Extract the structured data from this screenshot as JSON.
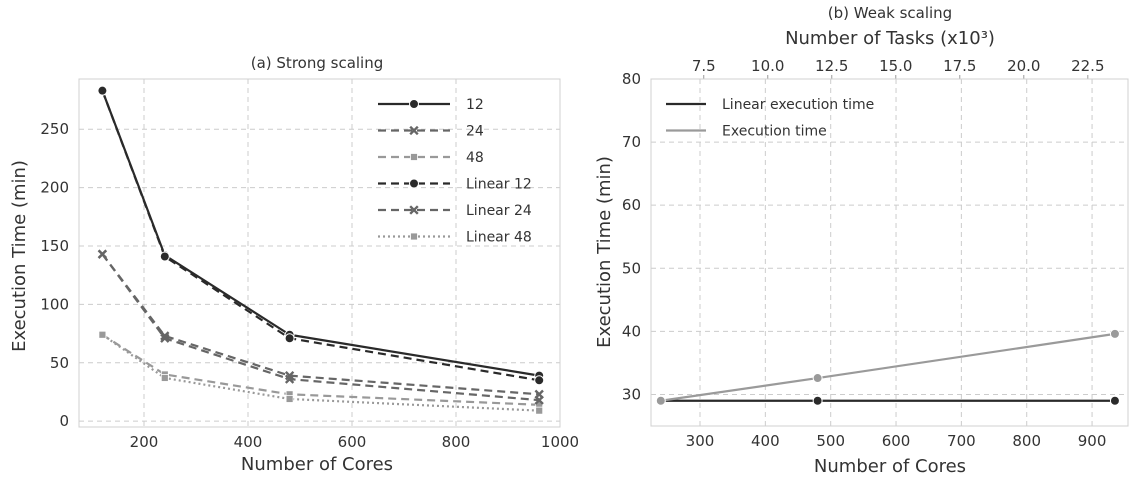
{
  "chart_data": [
    {
      "type": "line",
      "title": "(a) Strong scaling",
      "xlabel": "Number of Cores",
      "ylabel": "Execution Time (min)",
      "xlim": [
        75,
        1000
      ],
      "ylim": [
        -5,
        293
      ],
      "xticks": [
        200,
        400,
        600,
        800,
        1000
      ],
      "yticks": [
        0,
        50,
        100,
        150,
        200,
        250
      ],
      "grid": true,
      "legend_placement": "top-right",
      "series": [
        {
          "name": "12",
          "color": "#2a2a2a",
          "dash": "solid",
          "marker": "circle",
          "x": [
            120,
            240,
            480,
            960
          ],
          "y": [
            283,
            142,
            74,
            39
          ]
        },
        {
          "name": "24",
          "color": "#666666",
          "dash": "dashed",
          "marker": "x",
          "x": [
            120,
            240,
            480,
            960
          ],
          "y": [
            143,
            73,
            39,
            23
          ]
        },
        {
          "name": "48",
          "color": "#999999",
          "dash": "dashed",
          "marker": "square",
          "x": [
            120,
            240,
            480,
            960
          ],
          "y": [
            74,
            40,
            23,
            14
          ]
        },
        {
          "name": "Linear 12",
          "color": "#2a2a2a",
          "dash": "dashed",
          "marker": "circle",
          "x": [
            120,
            240,
            480,
            960
          ],
          "y": [
            283,
            141,
            71,
            35
          ]
        },
        {
          "name": "Linear 24",
          "color": "#666666",
          "dash": "dashed",
          "marker": "x",
          "x": [
            120,
            240,
            480,
            960
          ],
          "y": [
            143,
            71,
            36,
            18
          ]
        },
        {
          "name": "Linear 48",
          "color": "#999999",
          "dash": "dotted",
          "marker": "square",
          "x": [
            120,
            240,
            480,
            960
          ],
          "y": [
            74,
            37,
            19,
            9
          ]
        }
      ]
    },
    {
      "type": "line",
      "title": "(b) Weak scaling",
      "xlabel": "Number of Cores",
      "ylabel": "Execution Time (min)",
      "x2label": "Number of Tasks (x10³)",
      "xlim": [
        225,
        955
      ],
      "ylim": [
        25,
        80
      ],
      "xticks": [
        300,
        400,
        500,
        600,
        700,
        800,
        900
      ],
      "yticks": [
        30,
        40,
        50,
        60,
        70,
        80
      ],
      "x2lim": [
        5.44,
        24.07
      ],
      "x2ticks": [
        7.5,
        10.0,
        12.5,
        15.0,
        17.5,
        20.0,
        22.5
      ],
      "x2ticklabels": [
        "7.5",
        "10.0",
        "12.5",
        "15.0",
        "17.5",
        "20.0",
        "22.5"
      ],
      "grid": true,
      "legend_placement": "top-left",
      "series": [
        {
          "name": "Linear execution time",
          "color": "#2a2a2a",
          "dash": "solid",
          "marker": "circle",
          "x": [
            240,
            480,
            935
          ],
          "y": [
            29,
            29,
            29
          ]
        },
        {
          "name": "Execution time",
          "color": "#9a9a9a",
          "dash": "solid",
          "marker": "circle",
          "x": [
            240,
            480,
            935
          ],
          "y": [
            29,
            32.6,
            39.6
          ]
        }
      ]
    }
  ]
}
